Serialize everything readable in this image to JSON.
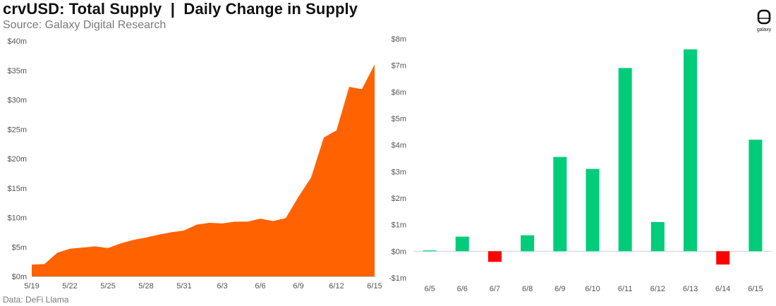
{
  "header": {
    "title": "crvUSD: Total Supply  |  Daily Change in Supply",
    "subtitle": "Source: Galaxy Digital Research"
  },
  "footer": {
    "text": "Data: DeFi Llama"
  },
  "logo": {
    "text": "galaxy",
    "icon": "galaxy-logo-icon"
  },
  "chart_data": [
    {
      "type": "area",
      "title": "",
      "xlabel": "",
      "ylabel": "",
      "color": "#ff6200",
      "x": [
        "5/19",
        "5/20",
        "5/21",
        "5/22",
        "5/23",
        "5/24",
        "5/25",
        "5/26",
        "5/27",
        "5/28",
        "5/29",
        "5/30",
        "5/31",
        "6/1",
        "6/2",
        "6/3",
        "6/4",
        "6/5",
        "6/6",
        "6/7",
        "6/8",
        "6/9",
        "6/10",
        "6/11",
        "6/12",
        "6/13",
        "6/14",
        "6/15"
      ],
      "values": [
        2.0,
        2.1,
        4.0,
        4.7,
        4.9,
        5.1,
        4.8,
        5.6,
        6.2,
        6.6,
        7.1,
        7.5,
        7.8,
        8.8,
        9.1,
        9.0,
        9.3,
        9.3,
        9.8,
        9.4,
        9.9,
        13.5,
        16.8,
        23.6,
        24.8,
        32.2,
        31.8,
        36.0
      ],
      "x_tick_labels": [
        "5/19",
        "5/22",
        "5/25",
        "5/28",
        "5/31",
        "6/3",
        "6/6",
        "6/9",
        "6/12",
        "6/15"
      ],
      "y_ticks": [
        0,
        5,
        10,
        15,
        20,
        25,
        30,
        35,
        40
      ],
      "y_tick_labels": [
        "$0m",
        "$5m",
        "$10m",
        "$15m",
        "$20m",
        "$25m",
        "$30m",
        "$35m",
        "$40m"
      ],
      "ylim": [
        0,
        40
      ],
      "grid": false
    },
    {
      "type": "bar",
      "title": "",
      "xlabel": "",
      "ylabel": "",
      "positive_color": "#00cc7a",
      "negative_color": "#ff0000",
      "categories": [
        "6/5",
        "6/6",
        "6/7",
        "6/8",
        "6/9",
        "6/10",
        "6/11",
        "6/12",
        "6/13",
        "6/14",
        "6/15"
      ],
      "values": [
        0.03,
        0.55,
        -0.4,
        0.6,
        3.55,
        3.1,
        6.9,
        1.1,
        7.6,
        -0.5,
        4.2
      ],
      "y_ticks": [
        -1,
        0,
        1,
        2,
        3,
        4,
        5,
        6,
        7,
        8
      ],
      "y_tick_labels": [
        "-$1m",
        "$0m",
        "$1m",
        "$2m",
        "$3m",
        "$4m",
        "$5m",
        "$6m",
        "$7m",
        "$8m"
      ],
      "ylim": [
        -1,
        8
      ],
      "grid": false
    }
  ]
}
